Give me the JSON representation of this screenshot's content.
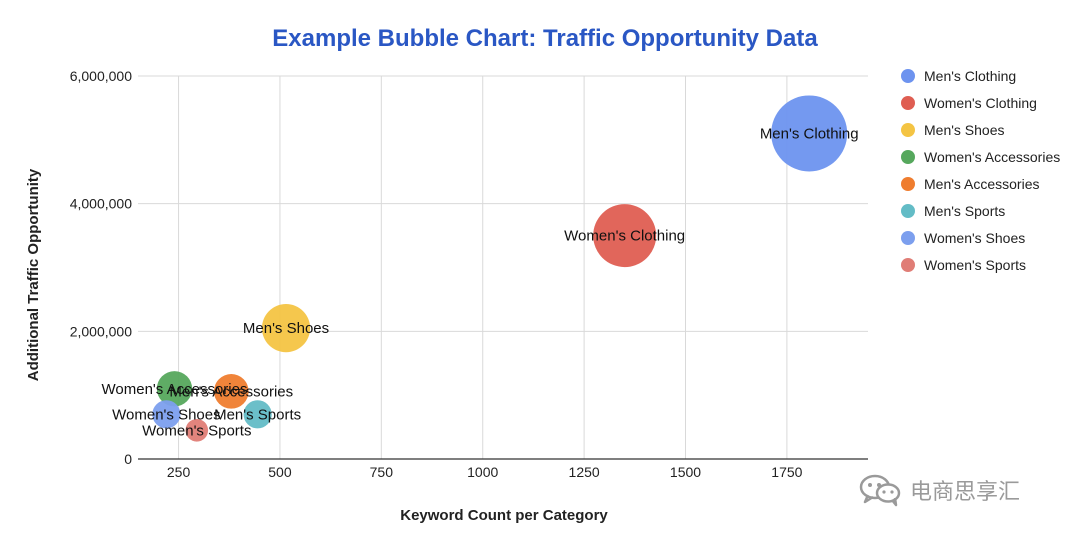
{
  "chart_data": {
    "type": "bubble",
    "title": "Example Bubble Chart: Traffic Opportunity Data",
    "xlabel": "Keyword Count per Category",
    "ylabel": "Additional Traffic Opportunity",
    "xlim": [
      150,
      1950
    ],
    "ylim": [
      0,
      6000000
    ],
    "xticks": [
      250,
      500,
      750,
      1000,
      1250,
      1500,
      1750
    ],
    "xtick_labels": [
      "250",
      "500",
      "750",
      "1000",
      "1250",
      "1500",
      "1750"
    ],
    "yticks": [
      0,
      2000000,
      4000000,
      6000000
    ],
    "ytick_labels": [
      "0",
      "2,000,000",
      "4,000,000",
      "6,000,000"
    ],
    "grid": true,
    "legend_position": "right",
    "colors": {
      "title": "#2a57c4",
      "grid": "#d9d9d9",
      "axis": "#333333"
    },
    "series": [
      {
        "name": "Men's Clothing",
        "x": 1805,
        "y": 5100000,
        "size": 5100000,
        "color": "#6d93ef"
      },
      {
        "name": "Women's Clothing",
        "x": 1350,
        "y": 3500000,
        "size": 3500000,
        "color": "#df5e52"
      },
      {
        "name": "Men's Shoes",
        "x": 515,
        "y": 2050000,
        "size": 2050000,
        "color": "#f4c443"
      },
      {
        "name": "Women's Accessories",
        "x": 240,
        "y": 1100000,
        "size": 1100000,
        "color": "#56a85d"
      },
      {
        "name": "Men's Accessories",
        "x": 380,
        "y": 1060000,
        "size": 1060000,
        "color": "#ef7d2f"
      },
      {
        "name": "Men's Sports",
        "x": 445,
        "y": 700000,
        "size": 700000,
        "color": "#63bcc6"
      },
      {
        "name": "Women's Shoes",
        "x": 220,
        "y": 700000,
        "size": 700000,
        "color": "#7c9fee"
      },
      {
        "name": "Women's Sports",
        "x": 295,
        "y": 450000,
        "size": 450000,
        "color": "#e07d76"
      }
    ]
  },
  "watermark": {
    "text": "电商思享汇",
    "icon": "wechat-icon"
  }
}
